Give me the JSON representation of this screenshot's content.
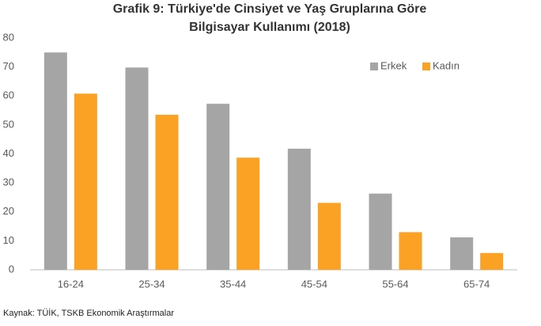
{
  "chart_data": {
    "type": "bar",
    "title": [
      "Grafik 9: Türkiye'de Cinsiyet ve Yaş Gruplarına Göre",
      "Bilgisayar Kullanımı (2018)"
    ],
    "categories": [
      "16-24",
      "25-34",
      "35-44",
      "45-54",
      "55-64",
      "65-74"
    ],
    "series": [
      {
        "name": "Erkek",
        "color": "#a5a5a5",
        "values": [
          75,
          69.8,
          57.3,
          41.8,
          26.3,
          11.2
        ]
      },
      {
        "name": "Kadın",
        "color": "#fba124",
        "values": [
          60.8,
          53.5,
          38.7,
          23.1,
          13,
          5.8
        ]
      }
    ],
    "ylim": [
      0,
      80
    ],
    "yticks": [
      0,
      10,
      20,
      30,
      40,
      50,
      60,
      70,
      80
    ],
    "grid": false,
    "legend": "upper right",
    "source": "Kaynak: TÜİK, TSKB Ekonomik Araştırmalar"
  }
}
